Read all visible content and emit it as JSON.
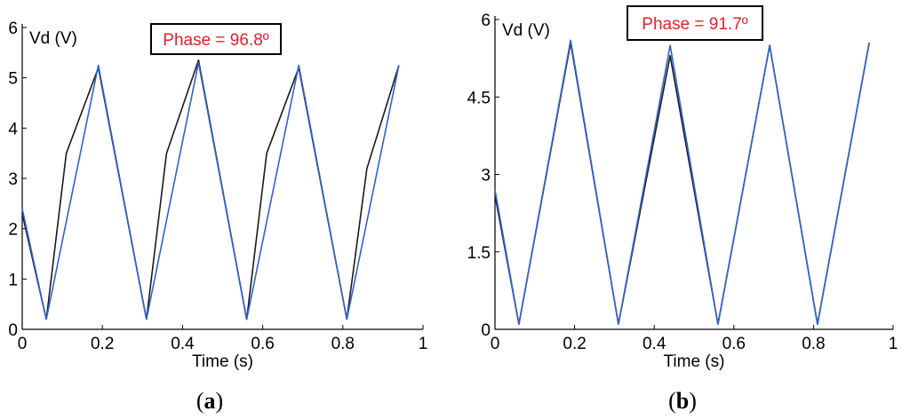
{
  "chart_data": [
    {
      "type": "line",
      "panel_label": "a",
      "ylabel": "Vd (V)",
      "xlabel": "Time (s)",
      "xlim": [
        0,
        1
      ],
      "ylim": [
        0,
        6
      ],
      "x_ticks": [
        "0",
        "0.2",
        "0.4",
        "0.6",
        "0.8",
        "1"
      ],
      "y_ticks": [
        "0",
        "1",
        "2",
        "3",
        "4",
        "5",
        "6"
      ],
      "annotation": "Phase = 96.8º",
      "annotation_color": "#e3202a",
      "series": [
        {
          "color": "#1a1a1a",
          "x": [
            0.0,
            0.06,
            0.11,
            0.19,
            0.31,
            0.36,
            0.44,
            0.56,
            0.61,
            0.69,
            0.81,
            0.86,
            0.94
          ],
          "y": [
            2.3,
            0.2,
            3.5,
            5.2,
            0.2,
            3.5,
            5.35,
            0.2,
            3.5,
            5.2,
            0.2,
            3.2,
            5.25
          ]
        },
        {
          "color": "#2f62d0",
          "x": [
            0.0,
            0.06,
            0.19,
            0.31,
            0.44,
            0.56,
            0.69,
            0.81,
            0.94
          ],
          "y": [
            2.4,
            0.2,
            5.25,
            0.2,
            5.3,
            0.2,
            5.25,
            0.2,
            5.25
          ]
        }
      ]
    },
    {
      "type": "line",
      "panel_label": "b",
      "ylabel": "Vd (V)",
      "xlabel": "Time (s)",
      "xlim": [
        0,
        1
      ],
      "ylim": [
        0,
        6
      ],
      "x_ticks": [
        "0",
        "0.2",
        "0.4",
        "0.6",
        "0.8",
        "1"
      ],
      "y_ticks": [
        "0",
        "1.5",
        "3",
        "4.5",
        "6"
      ],
      "annotation": "Phase = 91.7º",
      "annotation_color": "#e3202a",
      "series": [
        {
          "color": "#1a1a1a",
          "x": [
            0.0,
            0.06,
            0.19,
            0.31,
            0.44,
            0.56,
            0.69,
            0.81,
            0.94
          ],
          "y": [
            2.6,
            0.1,
            5.55,
            0.1,
            5.3,
            0.1,
            5.5,
            0.1,
            5.55
          ]
        },
        {
          "color": "#2f62d0",
          "x": [
            0.0,
            0.06,
            0.19,
            0.31,
            0.44,
            0.56,
            0.69,
            0.81,
            0.94
          ],
          "y": [
            2.7,
            0.1,
            5.6,
            0.1,
            5.5,
            0.1,
            5.5,
            0.1,
            5.55
          ]
        }
      ]
    }
  ]
}
